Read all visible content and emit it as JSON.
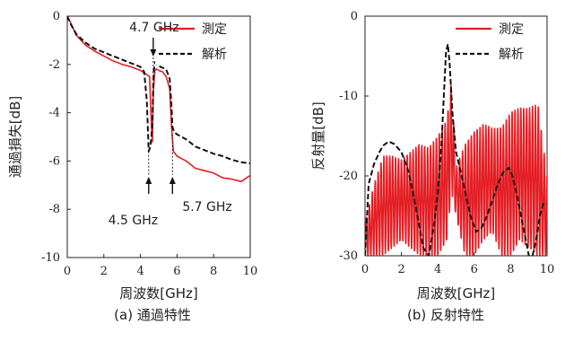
{
  "chart_data": [
    {
      "type": "line",
      "caption": "(a) 通過特性",
      "xlabel": "周波数[GHz]",
      "ylabel": "通過損失[dB]",
      "xlim": [
        0,
        10
      ],
      "ylim": [
        -10,
        0
      ],
      "xticks": [
        "0",
        "2",
        "4",
        "6",
        "8",
        "10"
      ],
      "yticks": [
        "0",
        "-2",
        "-4",
        "-6",
        "-8",
        "-10"
      ],
      "legend_position": "top-right",
      "series": [
        {
          "name": "測定",
          "color": "#e31e24",
          "style": "solid",
          "x": [
            0,
            0.2,
            0.5,
            1.0,
            1.5,
            2.0,
            2.5,
            3.0,
            3.5,
            4.0,
            4.3,
            4.5,
            4.6,
            4.65,
            4.7,
            4.75,
            4.8,
            4.9,
            5.0,
            5.2,
            5.4,
            5.6,
            5.7,
            5.8,
            6.0,
            6.5,
            7.0,
            7.5,
            8.0,
            8.5,
            9.0,
            9.5,
            10.0
          ],
          "y": [
            0,
            -0.3,
            -0.8,
            -1.2,
            -1.45,
            -1.65,
            -1.85,
            -2.0,
            -2.1,
            -2.25,
            -2.4,
            -2.5,
            -4.5,
            -5.2,
            -3.2,
            -2.6,
            -2.2,
            -2.2,
            -2.25,
            -2.3,
            -2.5,
            -3.0,
            -4.6,
            -5.6,
            -5.8,
            -6.0,
            -6.3,
            -6.4,
            -6.5,
            -6.7,
            -6.75,
            -6.85,
            -6.6
          ]
        },
        {
          "name": "解析",
          "color": "#111111",
          "style": "dashed",
          "x": [
            0,
            0.2,
            0.5,
            1.0,
            1.5,
            2.0,
            2.5,
            3.0,
            3.5,
            4.0,
            4.2,
            4.35,
            4.45,
            4.55,
            4.65,
            4.72,
            4.8,
            4.9,
            5.1,
            5.4,
            5.6,
            5.7,
            5.75,
            5.85,
            6.0,
            6.5,
            7.0,
            7.5,
            8.0,
            8.5,
            9.0,
            9.5,
            10.0
          ],
          "y": [
            0,
            -0.35,
            -0.75,
            -1.1,
            -1.35,
            -1.5,
            -1.65,
            -1.8,
            -1.95,
            -2.1,
            -2.3,
            -3.5,
            -5.6,
            -5.4,
            -4.5,
            -2.3,
            -1.9,
            -2.0,
            -2.1,
            -2.2,
            -2.6,
            -3.8,
            -4.6,
            -4.8,
            -4.9,
            -5.1,
            -5.4,
            -5.55,
            -5.7,
            -5.8,
            -5.95,
            -6.05,
            -6.1
          ]
        }
      ],
      "annotations": [
        {
          "text": "4.7 GHz",
          "x_at": 4.7,
          "arrow": "down"
        },
        {
          "text": "4.5 GHz",
          "x_at": 4.45,
          "arrow": "up"
        },
        {
          "text": "5.7 GHz",
          "x_at": 5.75,
          "arrow": "up"
        }
      ]
    },
    {
      "type": "line",
      "caption": "(b) 反射特性",
      "xlabel": "周波数[GHz]",
      "ylabel": "反射量[dB]",
      "xlim": [
        0,
        10
      ],
      "ylim": [
        -30,
        0
      ],
      "xticks": [
        "0",
        "2",
        "4",
        "6",
        "8",
        "10"
      ],
      "yticks": [
        "0",
        "-10",
        "-20",
        "-30"
      ],
      "legend_position": "top-right",
      "series": [
        {
          "name": "測定",
          "color": "#e31e24",
          "style": "solid",
          "envelope": {
            "x": [
              0,
              0.5,
              1.0,
              1.5,
              2.0,
              2.5,
              3.0,
              3.5,
              4.0,
              4.5,
              4.75,
              5.0,
              5.5,
              6.0,
              6.5,
              7.0,
              7.5,
              8.0,
              8.5,
              9.0,
              9.5,
              10.0
            ],
            "top": [
              -26,
              -21,
              -17.5,
              -17.5,
              -18,
              -17,
              -16,
              -16.5,
              -15,
              -13,
              -8,
              -19,
              -16,
              -14.5,
              -13.5,
              -14,
              -14,
              -12,
              -11.5,
              -11.5,
              -11,
              -20
            ],
            "bottom": [
              -30,
              -30,
              -30,
              -29,
              -28,
              -29,
              -30,
              -30,
              -30,
              -28,
              -22,
              -25,
              -30,
              -30,
              -28,
              -27,
              -30,
              -30,
              -28,
              -29,
              -30,
              -30
            ]
          }
        },
        {
          "name": "解析",
          "color": "#111111",
          "style": "dashed",
          "x": [
            0,
            0.2,
            0.5,
            0.8,
            1.0,
            1.3,
            1.6,
            2.0,
            2.4,
            2.8,
            3.2,
            3.5,
            3.8,
            4.0,
            4.2,
            4.35,
            4.45,
            4.55,
            4.65,
            4.8,
            5.0,
            5.2,
            5.5,
            5.8,
            6.1,
            6.4,
            6.7,
            7.0,
            7.3,
            7.6,
            7.9,
            8.1,
            8.4,
            8.7,
            9.0,
            9.2,
            9.4,
            9.6,
            9.8,
            10.0
          ],
          "y": [
            -30,
            -21,
            -18.5,
            -17,
            -16.2,
            -15.7,
            -16,
            -17,
            -19.5,
            -24,
            -29,
            -30,
            -26,
            -22,
            -16,
            -9,
            -4.5,
            -3.5,
            -6,
            -12,
            -17,
            -19,
            -22,
            -25,
            -27,
            -26.5,
            -25,
            -23,
            -21,
            -19.5,
            -19,
            -20,
            -23,
            -26.5,
            -30,
            -30,
            -28,
            -25,
            -23.5,
            -23.5
          ]
        }
      ]
    }
  ]
}
